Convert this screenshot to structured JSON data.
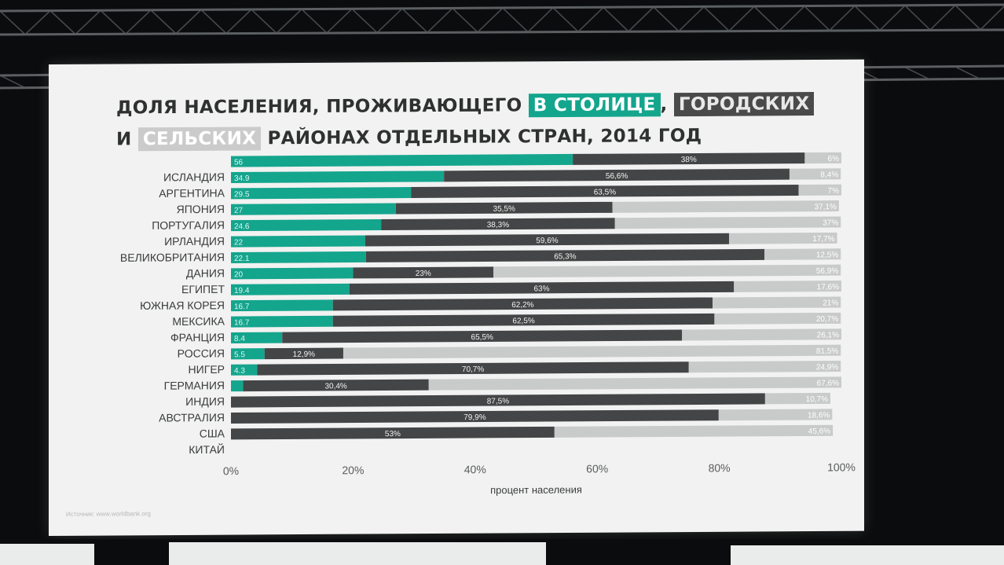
{
  "title": {
    "line1": "ДОЛЯ НАСЕЛЕНИЯ, ПРОЖИВАЮЩЕГО",
    "capital": "В СТОЛИЦЕ",
    "comma": ",",
    "urban": "ГОРОДСКИХ",
    "and": "И",
    "rural": "СЕЛЬСКИХ",
    "line2_rest": "РАЙОНАХ ОТДЕЛЬНЫХ СТРАН, 2014 ГОД"
  },
  "source": "Источник: www.worldbank.org",
  "colors": {
    "capital": "#14a58d",
    "urban": "#444546",
    "rural": "#c9caca"
  },
  "chart_data": {
    "type": "bar",
    "stacked": true,
    "orientation": "horizontal",
    "xlabel": "процент населения",
    "xlim": [
      0,
      100
    ],
    "xticks": [
      "0%",
      "20%",
      "40%",
      "60%",
      "80%",
      "100%"
    ],
    "grid": false,
    "categories": [
      "",
      "ИСЛАНДИЯ",
      "АРГЕНТИНА",
      "ЯПОНИЯ",
      "ПОРТУГАЛИЯ",
      "ИРЛАНДИЯ",
      "ВЕЛИКОБРИТАНИЯ",
      "ДАНИЯ",
      "ЕГИПЕТ",
      "ЮЖНАЯ КОРЕЯ",
      "МЕКСИКА",
      "ФРАНЦИЯ",
      "РОССИЯ",
      "НИГЕР",
      "ГЕРМАНИЯ",
      "ИНДИЯ",
      "АВСТРАЛИЯ",
      "США",
      "КИТАЙ"
    ],
    "series": [
      {
        "key": "capital",
        "values": [
          56,
          34.9,
          29.5,
          27,
          24.6,
          22,
          22.1,
          20,
          19.4,
          16.7,
          16.7,
          8.4,
          5.5,
          4.3,
          2,
          0,
          0,
          0,
          0
        ],
        "labels": [
          "56",
          "34.9",
          "29.5",
          "27",
          "24.6",
          "22",
          "22.1",
          "20",
          "19.4",
          "16.7",
          "16.7",
          "8.4",
          "5.5",
          "4.3",
          "",
          "",
          "",
          "",
          ""
        ]
      },
      {
        "key": "urban",
        "values": [
          38,
          56.6,
          63.5,
          35.5,
          38.3,
          59.6,
          65.3,
          23,
          63,
          62.2,
          62.5,
          65.5,
          12.9,
          70.7,
          30.4,
          87.5,
          79.9,
          53,
          0
        ],
        "labels": [
          "38%",
          "56,6%",
          "63,5%",
          "35,5%",
          "38,3%",
          "59,6%",
          "65,3%",
          "23%",
          "63%",
          "62,2%",
          "62,5%",
          "65,5%",
          "12,9%",
          "70,7%",
          "30,4%",
          "87,5%",
          "79,9%",
          "53%",
          ""
        ]
      },
      {
        "key": "rural",
        "values": [
          6,
          8.4,
          7,
          37.1,
          37,
          17.7,
          12.5,
          56.9,
          17.6,
          21,
          20.7,
          26.1,
          81.5,
          24.9,
          67.6,
          10.7,
          18.6,
          45.6,
          0
        ],
        "labels": [
          "6%",
          "8,4%",
          "7%",
          "37,1%",
          "37%",
          "17,7%",
          "12,5%",
          "56,9%",
          "17,6%",
          "21%",
          "20,7%",
          "26,1%",
          "81,5%",
          "24,9%",
          "67,6%",
          "10,7%",
          "18,6%",
          "45,6%",
          ""
        ]
      }
    ]
  }
}
